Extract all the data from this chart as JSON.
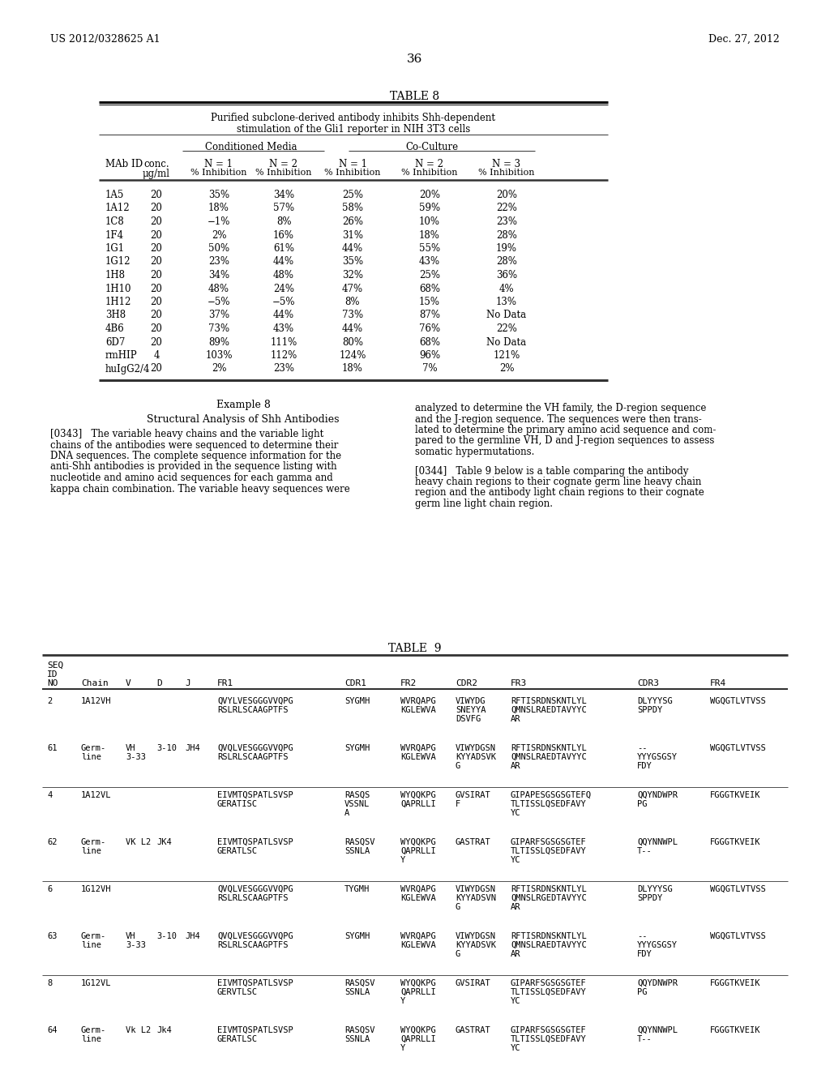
{
  "page_number": "36",
  "left_header": "US 2012/0328625 A1",
  "right_header": "Dec. 27, 2012",
  "table8_title": "TABLE 8",
  "table8_subtitle1": "Purified subclone-derived antibody inhibits Shh-dependent",
  "table8_subtitle2": "stimulation of the Gli1 reporter in NIH 3T3 cells",
  "table8_group1": "Conditioned Media",
  "table8_group2": "Co-Culture",
  "table8_data": [
    [
      "1A5",
      "20",
      "35%",
      "34%",
      "25%",
      "20%",
      "20%"
    ],
    [
      "1A12",
      "20",
      "18%",
      "57%",
      "58%",
      "59%",
      "22%"
    ],
    [
      "1C8",
      "20",
      "−1%",
      "8%",
      "26%",
      "10%",
      "23%"
    ],
    [
      "1F4",
      "20",
      "2%",
      "16%",
      "31%",
      "18%",
      "28%"
    ],
    [
      "1G1",
      "20",
      "50%",
      "61%",
      "44%",
      "55%",
      "19%"
    ],
    [
      "1G12",
      "20",
      "23%",
      "44%",
      "35%",
      "43%",
      "28%"
    ],
    [
      "1H8",
      "20",
      "34%",
      "48%",
      "32%",
      "25%",
      "36%"
    ],
    [
      "1H10",
      "20",
      "48%",
      "24%",
      "47%",
      "68%",
      "4%"
    ],
    [
      "1H12",
      "20",
      "−5%",
      "−5%",
      "8%",
      "15%",
      "13%"
    ],
    [
      "3H8",
      "20",
      "37%",
      "44%",
      "73%",
      "87%",
      "No Data"
    ],
    [
      "4B6",
      "20",
      "73%",
      "43%",
      "44%",
      "76%",
      "22%"
    ],
    [
      "6D7",
      "20",
      "89%",
      "111%",
      "80%",
      "68%",
      "No Data"
    ],
    [
      "rmHIP",
      "4",
      "103%",
      "112%",
      "124%",
      "96%",
      "121%"
    ],
    [
      "huIgG2/4",
      "20",
      "2%",
      "23%",
      "18%",
      "7%",
      "2%"
    ]
  ],
  "example8_title": "Example 8",
  "example8_subtitle": "Structural Analysis of Shh Antibodies",
  "example8_left_lines": [
    "[0343]   The variable heavy chains and the variable light",
    "chains of the antibodies were sequenced to determine their",
    "DNA sequences. The complete sequence information for the",
    "anti-Shh antibodies is provided in the sequence listing with",
    "nucleotide and amino acid sequences for each gamma and",
    "kappa chain combination. The variable heavy sequences were"
  ],
  "example8_right1_lines": [
    "analyzed to determine the VH family, the D-region sequence",
    "and the J-region sequence. The sequences were then trans-",
    "lated to determine the primary amino acid sequence and com-",
    "pared to the germline VH, D and J-region sequences to assess",
    "somatic hypermutations."
  ],
  "example8_right2_lines": [
    "[0344]   Table 9 below is a table comparing the antibody",
    "heavy chain regions to their cognate germ line heavy chain",
    "region and the antibody light chain regions to their cognate",
    "germ line light chain region."
  ],
  "table9_title": "TABLE  9",
  "table9_rows": [
    {
      "seq": "2",
      "chain": "1A12VH",
      "v": "",
      "d": "",
      "j": "",
      "fr1": "QVYLVESGGGVVQPG\nRSLRLSCAAGPTFS",
      "cdr1": "SYGMH",
      "fr2": "WVRQAPG\nKGLEWVA",
      "cdr2": "VIWYDG\nSNEYYA\nDSVFG",
      "fr3": "RFTISRDNSKNTLYL\nQMNSLRAEDTAVYYC\nAR",
      "cdr3": "DLYYYSG\nSPPDY",
      "fr4": "WGQGTLVTVSS"
    },
    {
      "seq": "61",
      "chain": "Germ-\nline",
      "v": "VH\n3-33",
      "d": "3-10",
      "j": "JH4",
      "fr1": "QVQLVESGGGVVQPG\nRSLRLSCAAGPTFS",
      "cdr1": "SYGMH",
      "fr2": "WVRQAPG\nKGLEWVA",
      "cdr2": "VIWYDGSN\nKYYADSVK\nG",
      "fr3": "RFTISRDNSKNTLYL\nQMNSLRAEDTAVYYC\nAR",
      "cdr3": "--\nYYYGSGSY\nFDY",
      "fr4": "WGQGTLVTVSS"
    },
    {
      "seq": "4",
      "chain": "1A12VL",
      "v": "",
      "d": "",
      "j": "",
      "fr1": "EIVMTQSPATLSVSP\nGERATISC",
      "cdr1": "RASQS\nVSSNL\nA",
      "fr2": "WYQQKPG\nQAPRLLI",
      "cdr2": "GVSIRAT\nF",
      "fr3": "GIPAPESGSGSGTEFQ\nTLTISSLQSEDFAVY\nYC",
      "cdr3": "QQYNDWPR\nPG",
      "fr4": "FGGGTKVEIK"
    },
    {
      "seq": "62",
      "chain": "Germ-\nline",
      "v": "VK L2",
      "d": "JK4",
      "j": "",
      "fr1": "EIVMTQSPATLSVSP\nGERATLSC",
      "cdr1": "RASQSV\nSSNLA",
      "fr2": "WYQQKPG\nQAPRLLI\nY",
      "cdr2": "GASTRAT",
      "fr3": "GIPARFSGSGSGTEF\nTLTISSLQSEDFAVY\nYC",
      "cdr3": "QQYNNWPL\nT--",
      "fr4": "FGGGTKVEIK"
    },
    {
      "seq": "6",
      "chain": "1G12VH",
      "v": "",
      "d": "",
      "j": "",
      "fr1": "QVQLVESGGGVVQPG\nRSLRLSCAAGPTFS",
      "cdr1": "TYGMH",
      "fr2": "WVRQAPG\nKGLEWVA",
      "cdr2": "VIWYDGSN\nKYYADSVN\nG",
      "fr3": "RFTISRDNSKNTLYL\nQMNSLRGEDTAVYYC\nAR",
      "cdr3": "DLYYYSG\nSPPDY",
      "fr4": "WGQGTLVTVSS"
    },
    {
      "seq": "63",
      "chain": "Germ-\nline",
      "v": "VH\n3-33",
      "d": "3-10",
      "j": "JH4",
      "fr1": "QVQLVESGGGVVQPG\nRSLRLSCAAGPTFS",
      "cdr1": "SYGMH",
      "fr2": "WVRQAPG\nKGLEWVA",
      "cdr2": "VIWYDGSN\nKYYADSVK\nG",
      "fr3": "RFTISRDNSKNTLYL\nQMNSLRAEDTAVYYC\nAR",
      "cdr3": "--\nYYYGSGSY\nFDY",
      "fr4": "WGQGTLVTVSS"
    },
    {
      "seq": "8",
      "chain": "1G12VL",
      "v": "",
      "d": "",
      "j": "",
      "fr1": "EIVMTQSPATLSVSP\nGERVTLSC",
      "cdr1": "RASQSV\nSSNLA",
      "fr2": "WYQQKPG\nQAPRLLI\nY",
      "cdr2": "GVSIRAT",
      "fr3": "GIPARFSGSGSGTEF\nTLTISSLQSEDFAVY\nYC",
      "cdr3": "QQYDNWPR\nPG",
      "fr4": "FGGGTKVEIK"
    },
    {
      "seq": "64",
      "chain": "Germ-\nline",
      "v": "Vk L2",
      "d": "Jk4",
      "j": "",
      "fr1": "EIVMTQSPATLSVSP\nGERATLSC",
      "cdr1": "RASQSV\nSSNLA",
      "fr2": "WYQQKPG\nQAPRLLI\nY",
      "cdr2": "GASTRAT",
      "fr3": "GIPARFSGSGSGTEF\nTLTISSLQSEDFAVY\nYC",
      "cdr3": "QQYNNWPL\nT--",
      "fr4": "FGGGTKVEIK"
    }
  ]
}
